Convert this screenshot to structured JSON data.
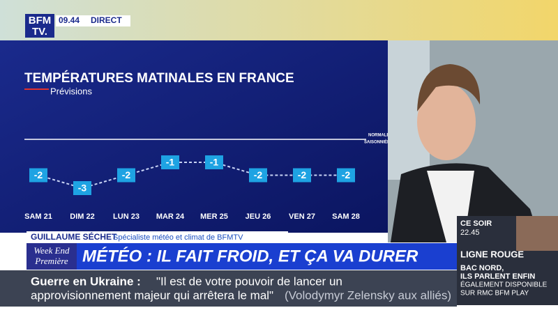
{
  "header": {
    "logo_top": "BFM",
    "logo_bottom": "TV.",
    "time": "09.44",
    "live": "DIRECT"
  },
  "chart_data": {
    "type": "line",
    "title": "TEMPÉRATURES MATINALES EN FRANCE",
    "subtitle": "Prévisions",
    "reference_label": [
      "NORMALES",
      "SAISONNIÈRES"
    ],
    "categories": [
      "SAM 21",
      "DIM 22",
      "LUN 23",
      "MAR 24",
      "MER 25",
      "JEU 26",
      "VEN 27",
      "SAM 28"
    ],
    "values": [
      -2,
      -3,
      -2,
      -1,
      -1,
      -2,
      -2,
      -2
    ],
    "color": "#1ea3e3"
  },
  "lower_third": {
    "name": "GUILLAUME SÉCHET",
    "role": "Spécialiste météo et climat de BFMTV",
    "show": [
      "Week End",
      "Première"
    ],
    "headline": "MÉTÉO : IL FAIT FROID, ET ÇA VA DURER"
  },
  "ticker": {
    "topic": "Guerre en Ukraine :",
    "quote": [
      "\"Il est de votre pouvoir de lancer un",
      "approvisionnement majeur qui arrêtera le mal\""
    ],
    "attribution": "(Volodymyr Zelensky aux alliés)"
  },
  "promo": {
    "when": "CE SOIR",
    "time": "22.45",
    "program": "LIGNE ROUGE",
    "subtitle": [
      "BAC NORD,",
      "ILS PARLENT ENFIN"
    ],
    "availability": [
      "ÉGALEMENT DISPONIBLE",
      "SUR RMC BFM PLAY"
    ]
  }
}
